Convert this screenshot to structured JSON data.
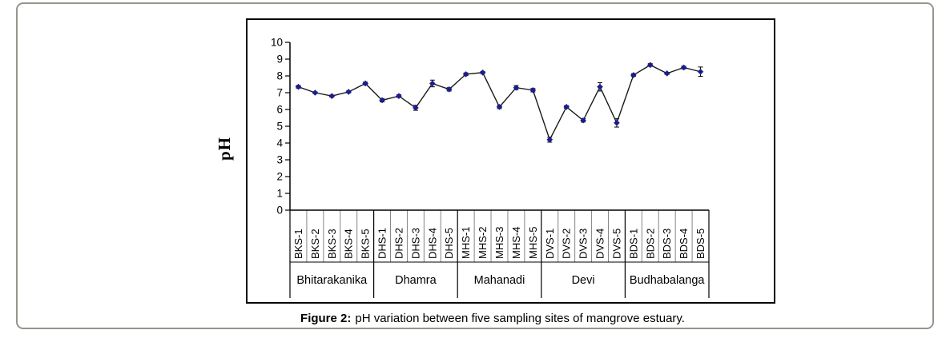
{
  "caption": {
    "prefix": "Figure 2:",
    "text": "pH variation between five sampling sites of mangrove estuary."
  },
  "chart_data": {
    "type": "line",
    "title": "",
    "xlabel": "",
    "ylabel": "pH",
    "ylim": [
      0,
      10
    ],
    "yticks": [
      0,
      1,
      2,
      3,
      4,
      5,
      6,
      7,
      8,
      9,
      10
    ],
    "grid": "off",
    "legend": "none",
    "error_bars": true,
    "categories": [
      "BKS-1",
      "BKS-2",
      "BKS-3",
      "BKS-4",
      "BKS-5",
      "DHS-1",
      "DHS-2",
      "DHS-3",
      "DHS-4",
      "DHS-5",
      "MHS-1",
      "MHS-2",
      "MHS-3",
      "MHS-4",
      "MHS-5",
      "DVS-1",
      "DVS-2",
      "DVS-3",
      "DVS-4",
      "DVS-5",
      "BDS-1",
      "BDS-2",
      "BDS-3",
      "BDS-4",
      "BDS-5"
    ],
    "groups": [
      {
        "name": "Bhitarakanika",
        "count": 5
      },
      {
        "name": "Dhamra",
        "count": 5
      },
      {
        "name": "Mahanadi",
        "count": 5
      },
      {
        "name": "Devi",
        "count": 5
      },
      {
        "name": "Budhabalanga",
        "count": 5
      }
    ],
    "series": [
      {
        "name": "pH",
        "marker": "diamond",
        "marker_color": "#1c1c8e",
        "line_color": "#1a1a1a",
        "error_color": "#000000",
        "values": [
          7.35,
          7.0,
          6.8,
          7.05,
          7.55,
          6.55,
          6.8,
          6.1,
          7.55,
          7.2,
          8.1,
          8.2,
          6.15,
          7.3,
          7.15,
          4.2,
          6.15,
          5.35,
          7.35,
          5.2,
          8.05,
          8.65,
          8.15,
          8.5,
          8.25
        ],
        "errors": [
          0.08,
          0.05,
          0.06,
          0.06,
          0.08,
          0.1,
          0.08,
          0.15,
          0.2,
          0.1,
          0.08,
          0.06,
          0.1,
          0.12,
          0.1,
          0.15,
          0.08,
          0.1,
          0.25,
          0.25,
          0.08,
          0.08,
          0.06,
          0.08,
          0.28
        ]
      }
    ],
    "axis_color": "#000000",
    "cell_separator_color": "#858585",
    "group_separator_color": "#000000"
  }
}
